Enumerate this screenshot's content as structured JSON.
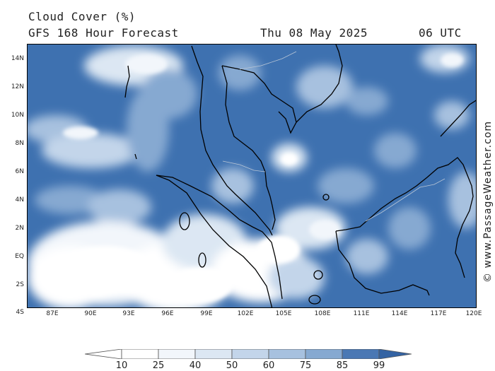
{
  "header": {
    "title": "Cloud Cover (%)",
    "subtitle": "GFS 168 Hour Forecast",
    "date": "Thu 08 May 2025",
    "time": "06 UTC"
  },
  "axes": {
    "lat_labels": [
      "14N",
      "12N",
      "10N",
      "8N",
      "6N",
      "4N",
      "2N",
      "EQ",
      "2S",
      "4S"
    ],
    "lon_labels": [
      "87E",
      "90E",
      "93E",
      "96E",
      "99E",
      "102E",
      "105E",
      "108E",
      "111E",
      "114E",
      "117E",
      "120E"
    ]
  },
  "credit": "© www.PassageWeather.com",
  "legend": {
    "levels": [
      "10",
      "25",
      "40",
      "50",
      "60",
      "75",
      "85",
      "99"
    ],
    "colors": [
      "#ffffff",
      "#f2f6fb",
      "#dce7f3",
      "#c3d5ea",
      "#a7c1df",
      "#86a9d1",
      "#6690c2",
      "#4a78b4",
      "#3463a3"
    ]
  },
  "map": {
    "region": "Malay Peninsula, Sumatra, Borneo, Gulf of Thailand",
    "ocean_color": "#3e71b0",
    "coastline_color": "#000000"
  }
}
